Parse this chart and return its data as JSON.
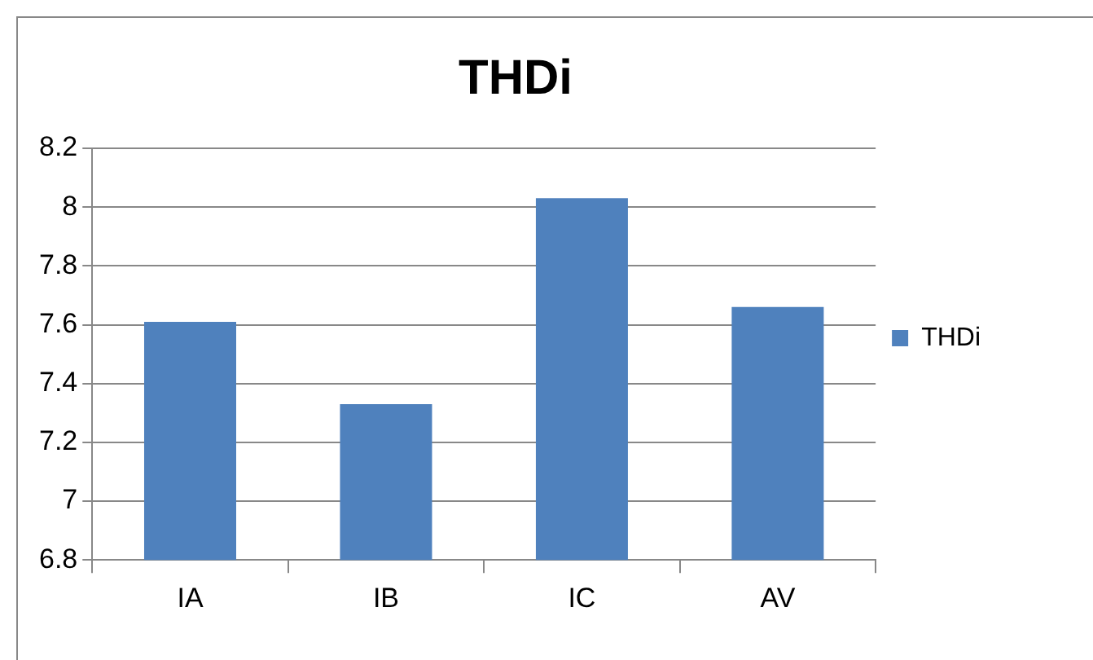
{
  "chart_data": {
    "type": "bar",
    "title": "THDi",
    "categories": [
      "IA",
      "IB",
      "IC",
      "AV"
    ],
    "series": [
      {
        "name": "THDi",
        "color": "#4f81bd",
        "values": [
          7.61,
          7.33,
          8.03,
          7.66
        ]
      }
    ],
    "ylim": [
      6.8,
      8.2
    ],
    "yticks": [
      6.8,
      7,
      7.2,
      7.4,
      7.6,
      7.8,
      8,
      8.2
    ],
    "grid": "y",
    "legend": "right"
  }
}
